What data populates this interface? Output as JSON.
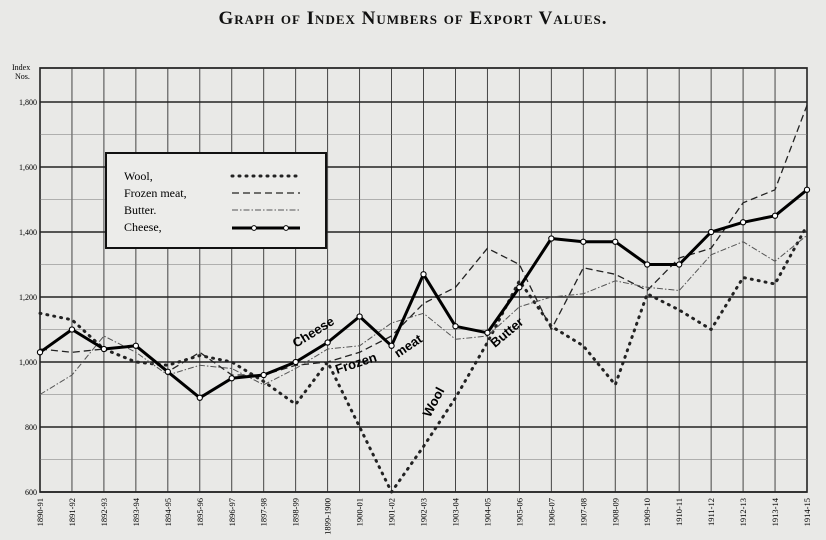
{
  "title": "Graph of Index Numbers of Export Values.",
  "y_axis_label_line1": "Index",
  "y_axis_label_line2": "Nos.",
  "chart_data": {
    "type": "line",
    "title": "Graph of Index Numbers of Export Values.",
    "ylabel": "Index Nos.",
    "xlabel": "",
    "ylim": [
      600,
      1800
    ],
    "yticks": [
      600,
      800,
      1000,
      1200,
      1400,
      1600,
      1800
    ],
    "ytick_labels": [
      "600",
      "800",
      "1,000",
      "1,200",
      "1,400",
      "1,600",
      "1,800"
    ],
    "grid": true,
    "legend_placement": "upper-left",
    "x": [
      "1890-91",
      "1891-92",
      "1892-93",
      "1893-94",
      "1894-95",
      "1895-96",
      "1896-97",
      "1897-98",
      "1898-99",
      "1899-1900",
      "1900-01",
      "1901-02",
      "1902-03",
      "1903-04",
      "1904-05",
      "1905-06",
      "1906-07",
      "1907-08",
      "1908-09",
      "1909-10",
      "1910-11",
      "1911-12",
      "1912-13",
      "1913-14",
      "1914-15"
    ],
    "series": [
      {
        "name": "Wool,",
        "style": "dotted",
        "color": "#222222",
        "values": [
          1150,
          1130,
          1040,
          1000,
          990,
          1020,
          1000,
          940,
          870,
          1000,
          800,
          600,
          740,
          890,
          1060,
          1250,
          1110,
          1050,
          930,
          1210,
          1160,
          1100,
          1260,
          1240,
          1420
        ]
      },
      {
        "name": "Frozen meat,",
        "style": "dashed",
        "color": "#222222",
        "values": [
          1040,
          1030,
          1040,
          1050,
          970,
          1030,
          960,
          960,
          990,
          1000,
          1030,
          1080,
          1180,
          1230,
          1350,
          1300,
          1100,
          1290,
          1270,
          1220,
          1320,
          1350,
          1490,
          1530,
          1790
        ]
      },
      {
        "name": "Butter.",
        "style": "dashdot",
        "color": "#666666",
        "values": [
          900,
          960,
          1080,
          1030,
          960,
          990,
          980,
          930,
          980,
          1040,
          1050,
          1120,
          1150,
          1070,
          1080,
          1170,
          1200,
          1210,
          1250,
          1230,
          1220,
          1330,
          1370,
          1310,
          1390
        ]
      },
      {
        "name": "Cheese,",
        "style": "solid-markers",
        "color": "#000000",
        "values": [
          1030,
          1100,
          1040,
          1050,
          970,
          890,
          950,
          960,
          1000,
          1060,
          1140,
          1050,
          1270,
          1110,
          1090,
          1230,
          1380,
          1370,
          1370,
          1300,
          1300,
          1400,
          1430,
          1450,
          1530
        ]
      }
    ],
    "annotations": [
      "Cheese",
      "Frozen",
      "meat",
      "Butter",
      "Wool"
    ]
  }
}
